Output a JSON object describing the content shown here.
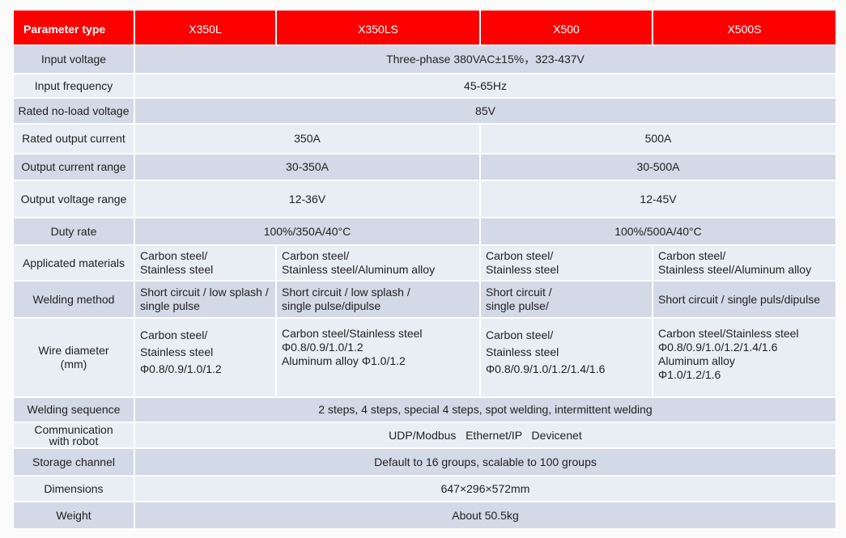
{
  "header": {
    "param": "Parameter type",
    "models": [
      "X350L",
      "X350LS",
      "X500",
      "X500S"
    ]
  },
  "rows": {
    "input_voltage": {
      "label": "Input voltage",
      "value": "Three-phase 380VAC±15%，323-437V"
    },
    "input_frequency": {
      "label": "Input frequency",
      "value": "45-65Hz"
    },
    "no_load": {
      "label": "Rated no-load voltage",
      "value": "85V"
    },
    "rated_output": {
      "label": "Rated output current",
      "x350": "350A",
      "x500": "500A"
    },
    "current_range": {
      "label": "Output current range",
      "x350": "30-350A",
      "x500": "30-500A"
    },
    "voltage_range": {
      "label": "Output voltage range",
      "x350": "12-36V",
      "x500": "12-45V"
    },
    "duty": {
      "label": "Duty rate",
      "x350": "100%/350A/40°C",
      "x500": "100%/500A/40°C"
    },
    "materials": {
      "label": "Applicated  materials",
      "values": [
        "Carbon steel/\nStainless steel",
        "Carbon steel/\nStainless steel/Aluminum alloy",
        "Carbon steel/\nStainless steel",
        "Carbon steel/\nStainless steel/Aluminum alloy"
      ]
    },
    "welding_method": {
      "label": "Welding method",
      "values": [
        "Short circuit / low splash /\nsingle pulse",
        "Short circuit / low splash /\nsingle pulse/dipulse",
        "Short circuit /\nsingle pulse/",
        "Short circuit / single puls/dipulse"
      ]
    },
    "wire": {
      "label": "Wire diameter\n(mm)",
      "values": [
        "Carbon steel/\nStainless steel\nΦ0.8/0.9/1.0/1.2",
        "Carbon steel/Stainless steel\n Φ0.8/0.9/1.0/1.2\nAluminum alloy Φ1.0/1.2",
        "Carbon steel/\nStainless steel\nΦ0.8/0.9/1.0/1.2/1.4/1.6",
        "Carbon steel/Stainless steel\nΦ0.8/0.9/1.0/1.2/1.4/1.6\nAluminum alloy\nΦ1.0/1.2/1.6"
      ]
    },
    "sequence": {
      "label": "Welding sequence",
      "value": "2 steps, 4 steps, special 4 steps, spot welding, intermittent welding"
    },
    "communication": {
      "label": "Communication\nwith robot",
      "value": "UDP/Modbus   Ethernet/IP   Devicenet"
    },
    "storage": {
      "label": "Storage channel",
      "value": "Default to 16 groups, scalable to 100 groups"
    },
    "dimensions": {
      "label": "Dimensions",
      "value": "647×296×572mm"
    },
    "weight": {
      "label": "Weight",
      "value": "About 50.5kg"
    }
  }
}
